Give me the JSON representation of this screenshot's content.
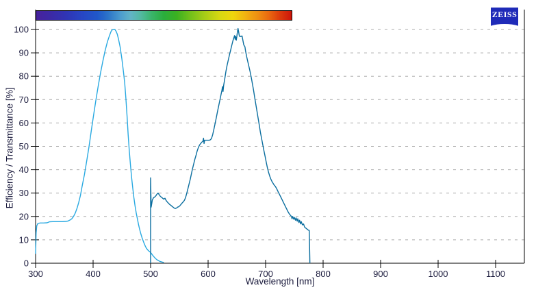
{
  "branding": {
    "logo_text": "ZEISS",
    "logo_bg": "#1F2BB8",
    "logo_text_color": "#FFFFFF"
  },
  "chart_data": {
    "type": "line",
    "title": "",
    "xlabel": "Wavelength [nm]",
    "ylabel": "Efficiency / Transmittance [%]",
    "xlim": [
      300,
      1150
    ],
    "ylim": [
      0,
      108.5
    ],
    "x_ticks": [
      300,
      400,
      500,
      600,
      700,
      800,
      900,
      1000,
      1100
    ],
    "y_ticks": [
      0,
      10,
      20,
      30,
      40,
      50,
      60,
      70,
      80,
      90,
      100
    ],
    "grid": "horizontal-dashed",
    "grid_color": "#ABABAB",
    "axis_color": "#000000",
    "text_color": "#1A1A3C",
    "legend": "none",
    "series": [
      {
        "name": "light-blue-spectrum",
        "color": "#29A9E1",
        "points": [
          [
            300,
            4
          ],
          [
            301,
            13
          ],
          [
            302,
            16
          ],
          [
            304,
            17
          ],
          [
            308,
            17.2
          ],
          [
            314,
            17.2
          ],
          [
            320,
            17.3
          ],
          [
            324,
            17.7
          ],
          [
            330,
            17.8
          ],
          [
            338,
            17.8
          ],
          [
            346,
            17.8
          ],
          [
            352,
            17.9
          ],
          [
            356,
            18
          ],
          [
            360,
            18.5
          ],
          [
            363,
            19
          ],
          [
            366,
            20
          ],
          [
            369,
            21.5
          ],
          [
            372,
            23.5
          ],
          [
            375,
            26
          ],
          [
            378,
            29
          ],
          [
            381,
            33
          ],
          [
            385,
            38
          ],
          [
            389,
            44
          ],
          [
            393,
            50
          ],
          [
            397,
            57
          ],
          [
            401,
            63.5
          ],
          [
            405,
            70
          ],
          [
            409,
            76
          ],
          [
            413,
            81.5
          ],
          [
            417,
            86.5
          ],
          [
            421,
            91
          ],
          [
            425,
            94.8
          ],
          [
            428,
            97
          ],
          [
            431,
            99
          ],
          [
            433,
            99.8
          ],
          [
            436,
            100
          ],
          [
            438,
            100
          ],
          [
            440,
            99.2
          ],
          [
            442,
            98
          ],
          [
            444,
            96
          ],
          [
            447,
            92.5
          ],
          [
            450,
            87.5
          ],
          [
            453,
            81.5
          ],
          [
            455,
            77
          ],
          [
            457,
            70.5
          ],
          [
            459,
            63
          ],
          [
            461,
            55
          ],
          [
            463,
            48
          ],
          [
            465,
            42
          ],
          [
            467,
            36.5
          ],
          [
            469,
            32
          ],
          [
            471,
            28
          ],
          [
            473,
            24.5
          ],
          [
            475,
            21.5
          ],
          [
            477,
            19
          ],
          [
            479,
            16.5
          ],
          [
            481,
            14.5
          ],
          [
            483,
            12.6
          ],
          [
            485,
            11
          ],
          [
            487,
            9.6
          ],
          [
            489,
            8.3
          ],
          [
            491,
            7.2
          ],
          [
            493,
            6.3
          ],
          [
            495,
            5.7
          ],
          [
            497,
            5.2
          ],
          [
            499,
            4.8
          ],
          [
            501,
            4.3
          ],
          [
            503,
            3.6
          ],
          [
            505,
            3
          ],
          [
            507,
            2.4
          ],
          [
            509,
            1.9
          ],
          [
            511,
            1.5
          ],
          [
            513,
            1.2
          ],
          [
            515,
            0.9
          ],
          [
            517,
            0.7
          ],
          [
            519,
            0.55
          ],
          [
            521,
            0.45
          ],
          [
            523,
            0.35
          ]
        ]
      },
      {
        "name": "dark-blue-spectrum",
        "color": "#0B6E9F",
        "points": [
          [
            500,
            0
          ],
          [
            500,
            36.5
          ],
          [
            501,
            24
          ],
          [
            502,
            25.5
          ],
          [
            503,
            27
          ],
          [
            505,
            28
          ],
          [
            507,
            28.3
          ],
          [
            509,
            28.8
          ],
          [
            511,
            29.5
          ],
          [
            513,
            30
          ],
          [
            515,
            29.3
          ],
          [
            517,
            28.6
          ],
          [
            519,
            28.2
          ],
          [
            521,
            27.8
          ],
          [
            523,
            27.4
          ],
          [
            525,
            27.8
          ],
          [
            527,
            26.8
          ],
          [
            529,
            26.2
          ],
          [
            531,
            25.7
          ],
          [
            533,
            25.2
          ],
          [
            535,
            24.8
          ],
          [
            537,
            24.4
          ],
          [
            539,
            24
          ],
          [
            541,
            23.6
          ],
          [
            543,
            23.4
          ],
          [
            545,
            23.6
          ],
          [
            547,
            24
          ],
          [
            549,
            24.2
          ],
          [
            551,
            24.6
          ],
          [
            553,
            25.2
          ],
          [
            555,
            25.8
          ],
          [
            557,
            26.3
          ],
          [
            559,
            27
          ],
          [
            561,
            28.2
          ],
          [
            563,
            30
          ],
          [
            565,
            32
          ],
          [
            567,
            34
          ],
          [
            569,
            36
          ],
          [
            571,
            38.2
          ],
          [
            573,
            40.5
          ],
          [
            575,
            42.5
          ],
          [
            577,
            44.5
          ],
          [
            579,
            46.2
          ],
          [
            581,
            48
          ],
          [
            583,
            49.4
          ],
          [
            585,
            50.5
          ],
          [
            587,
            51.2
          ],
          [
            589,
            51.8
          ],
          [
            591,
            52.2
          ],
          [
            592,
            53.5
          ],
          [
            593,
            51.2
          ],
          [
            594,
            52.6
          ],
          [
            596,
            52.6
          ],
          [
            598,
            52.6
          ],
          [
            600,
            52.6
          ],
          [
            602,
            52.6
          ],
          [
            604,
            52.8
          ],
          [
            606,
            53.4
          ],
          [
            608,
            55
          ],
          [
            610,
            57.2
          ],
          [
            612,
            59.6
          ],
          [
            614,
            62
          ],
          [
            616,
            64.4
          ],
          [
            618,
            66.8
          ],
          [
            620,
            69.2
          ],
          [
            622,
            71.6
          ],
          [
            624,
            74
          ],
          [
            625,
            75.5
          ],
          [
            626,
            73.5
          ],
          [
            627,
            76
          ],
          [
            629,
            79
          ],
          [
            631,
            82
          ],
          [
            633,
            84.6
          ],
          [
            635,
            86.8
          ],
          [
            637,
            89
          ],
          [
            639,
            91
          ],
          [
            641,
            93
          ],
          [
            643,
            95
          ],
          [
            645,
            96.6
          ],
          [
            646,
            97.4
          ],
          [
            647,
            95.8
          ],
          [
            648,
            97
          ],
          [
            649,
            95.4
          ],
          [
            650,
            97
          ],
          [
            651,
            99
          ],
          [
            652,
            100.4
          ],
          [
            653,
            99.2
          ],
          [
            654,
            97.6
          ],
          [
            655,
            97
          ],
          [
            657,
            97
          ],
          [
            659,
            97.2
          ],
          [
            660,
            96
          ],
          [
            662,
            93.4
          ],
          [
            664,
            92.6
          ],
          [
            665,
            91
          ],
          [
            667,
            88.4
          ],
          [
            669,
            86.2
          ],
          [
            671,
            84.2
          ],
          [
            673,
            82
          ],
          [
            675,
            79.6
          ],
          [
            677,
            76.8
          ],
          [
            679,
            74
          ],
          [
            681,
            71
          ],
          [
            683,
            68
          ],
          [
            685,
            65
          ],
          [
            687,
            62
          ],
          [
            689,
            59
          ],
          [
            691,
            56
          ],
          [
            693,
            53.4
          ],
          [
            695,
            50.8
          ],
          [
            697,
            48.2
          ],
          [
            699,
            45.8
          ],
          [
            701,
            43.4
          ],
          [
            703,
            41
          ],
          [
            705,
            39
          ],
          [
            707,
            37.4
          ],
          [
            709,
            36
          ],
          [
            711,
            35
          ],
          [
            713,
            34.2
          ],
          [
            715,
            33.4
          ],
          [
            717,
            32.8
          ],
          [
            719,
            32
          ],
          [
            721,
            31
          ],
          [
            723,
            30
          ],
          [
            725,
            29
          ],
          [
            727,
            28
          ],
          [
            729,
            27
          ],
          [
            731,
            26
          ],
          [
            733,
            25
          ],
          [
            735,
            24
          ],
          [
            737,
            23
          ],
          [
            739,
            22
          ],
          [
            741,
            21.2
          ],
          [
            743,
            20.6
          ],
          [
            745,
            20
          ],
          [
            746,
            19
          ],
          [
            747,
            20
          ],
          [
            749,
            18.8
          ],
          [
            750,
            19.6
          ],
          [
            752,
            18.4
          ],
          [
            753,
            19.4
          ],
          [
            755,
            18
          ],
          [
            756,
            19
          ],
          [
            758,
            17.4
          ],
          [
            759,
            18.4
          ],
          [
            761,
            16.8
          ],
          [
            762,
            17.8
          ],
          [
            764,
            16.4
          ],
          [
            766,
            16.8
          ],
          [
            768,
            15.4
          ],
          [
            770,
            15
          ],
          [
            772,
            14.6
          ],
          [
            774,
            14.2
          ],
          [
            776,
            14
          ],
          [
            777,
            0
          ]
        ]
      }
    ],
    "spectrum_bar": {
      "range_nm": [
        300,
        744
      ],
      "stops": [
        {
          "pos": 0,
          "color": "#47219C"
        },
        {
          "pos": 6,
          "color": "#3B2AA6"
        },
        {
          "pos": 12,
          "color": "#2F35B5"
        },
        {
          "pos": 18,
          "color": "#2746C4"
        },
        {
          "pos": 24,
          "color": "#2058C9"
        },
        {
          "pos": 28,
          "color": "#2B73C8"
        },
        {
          "pos": 33,
          "color": "#4C9CCE"
        },
        {
          "pos": 37,
          "color": "#62B4C6"
        },
        {
          "pos": 41,
          "color": "#52B9A0"
        },
        {
          "pos": 45,
          "color": "#3BB56C"
        },
        {
          "pos": 50,
          "color": "#2AAE3C"
        },
        {
          "pos": 55,
          "color": "#3BB121"
        },
        {
          "pos": 60,
          "color": "#6FBF1B"
        },
        {
          "pos": 66,
          "color": "#A7CC17"
        },
        {
          "pos": 72,
          "color": "#D8D812"
        },
        {
          "pos": 77,
          "color": "#EFD60D"
        },
        {
          "pos": 82,
          "color": "#F2B111"
        },
        {
          "pos": 87,
          "color": "#EE8D12"
        },
        {
          "pos": 91,
          "color": "#E96A10"
        },
        {
          "pos": 95,
          "color": "#DD3F0C"
        },
        {
          "pos": 100,
          "color": "#CE150A"
        }
      ]
    }
  }
}
